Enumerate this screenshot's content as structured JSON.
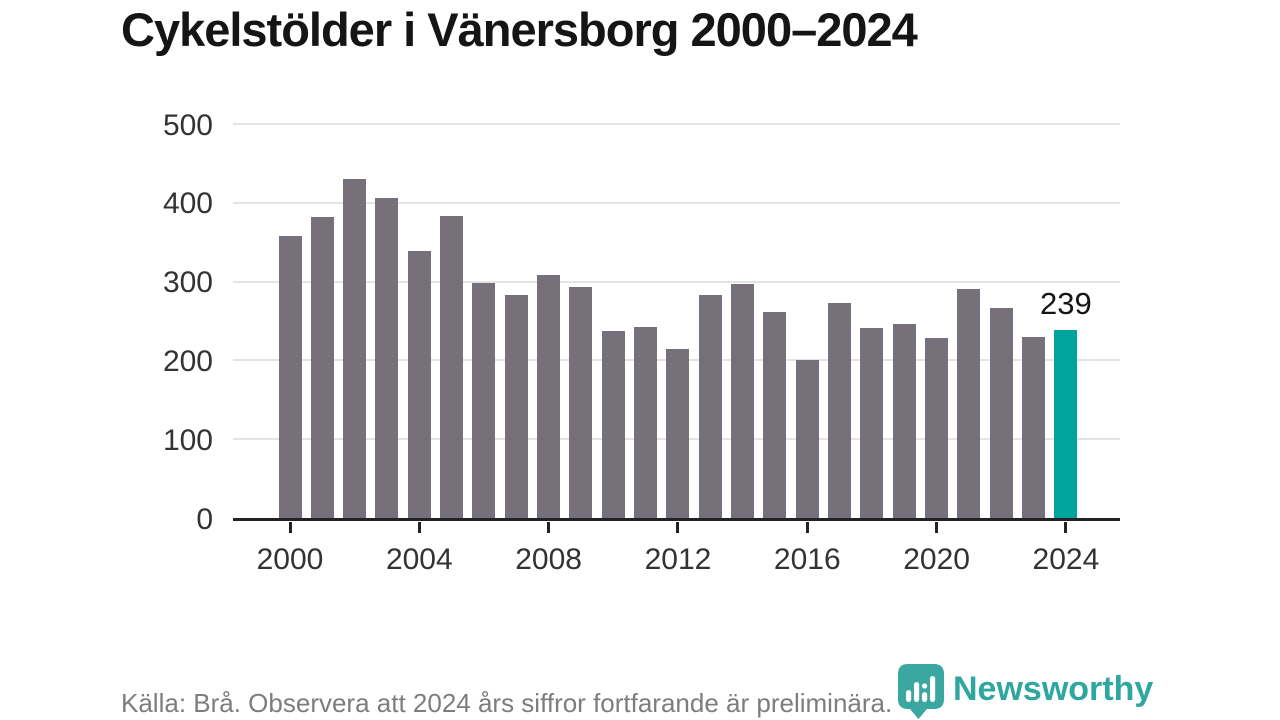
{
  "page": {
    "title": "Cykelstölder i Vänersborg 2000–2024",
    "source_note": "Källa: Brå. Observera att 2024 års siffror fortfarande är preliminära.",
    "brand_name": "Newsworthy"
  },
  "colors": {
    "bar": "#757079",
    "highlight": "#00a49c",
    "title_text": "#151515",
    "axis_text": "#333333",
    "axis_line": "#232323",
    "gridline": "#e4e4e4",
    "footer_text": "#7d7d7d",
    "brand_teal": "#2fa7a1"
  },
  "chart_data": {
    "type": "bar",
    "title": "Cykelstölder i Vänersborg 2000–2024",
    "xlabel": "",
    "ylabel": "",
    "ylim": [
      0,
      500
    ],
    "y_ticks": [
      0,
      100,
      200,
      300,
      400,
      500
    ],
    "x_tick_labels": [
      "2000",
      "2004",
      "2008",
      "2012",
      "2016",
      "2020",
      "2024"
    ],
    "grid": "horizontal",
    "legend": "none",
    "categories": [
      "2000",
      "2001",
      "2002",
      "2003",
      "2004",
      "2005",
      "2006",
      "2007",
      "2008",
      "2009",
      "2010",
      "2011",
      "2012",
      "2013",
      "2014",
      "2015",
      "2016",
      "2017",
      "2018",
      "2019",
      "2020",
      "2021",
      "2022",
      "2023",
      "2024"
    ],
    "values": [
      358,
      382,
      430,
      406,
      339,
      383,
      298,
      283,
      308,
      293,
      237,
      243,
      215,
      283,
      297,
      262,
      200,
      273,
      241,
      246,
      229,
      291,
      267,
      230,
      239
    ],
    "bar_color": "#757079",
    "highlight": {
      "index": 24,
      "category": "2024",
      "value": 239,
      "label": "239",
      "color": "#00a49c"
    }
  }
}
